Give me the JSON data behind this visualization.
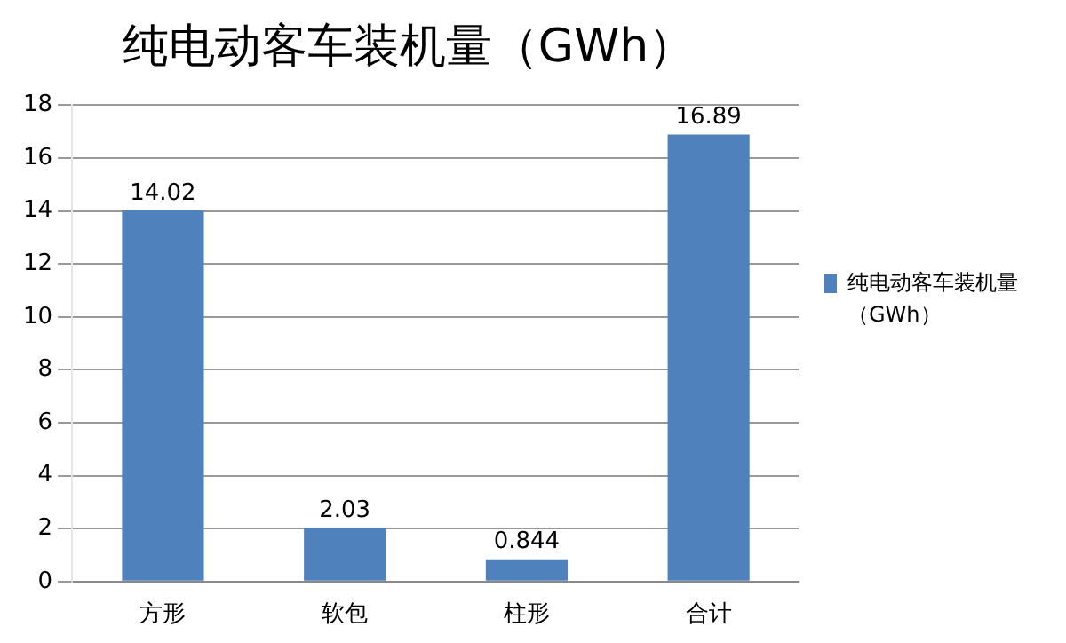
{
  "chart_data": {
    "type": "bar",
    "title": "纯电动客车装机量（GWh）",
    "categories": [
      "方形",
      "软包",
      "柱形",
      "合计"
    ],
    "series": [
      {
        "name": "纯电动客车装机量（GWh）",
        "color": "#4f81bd",
        "values": [
          14.02,
          2.03,
          0.844,
          16.89
        ]
      }
    ],
    "ylim": [
      0,
      18
    ],
    "yticks": [
      0,
      2,
      4,
      6,
      8,
      10,
      12,
      14,
      16,
      18
    ],
    "grid": "y",
    "legend": "right",
    "data_labels": true
  }
}
